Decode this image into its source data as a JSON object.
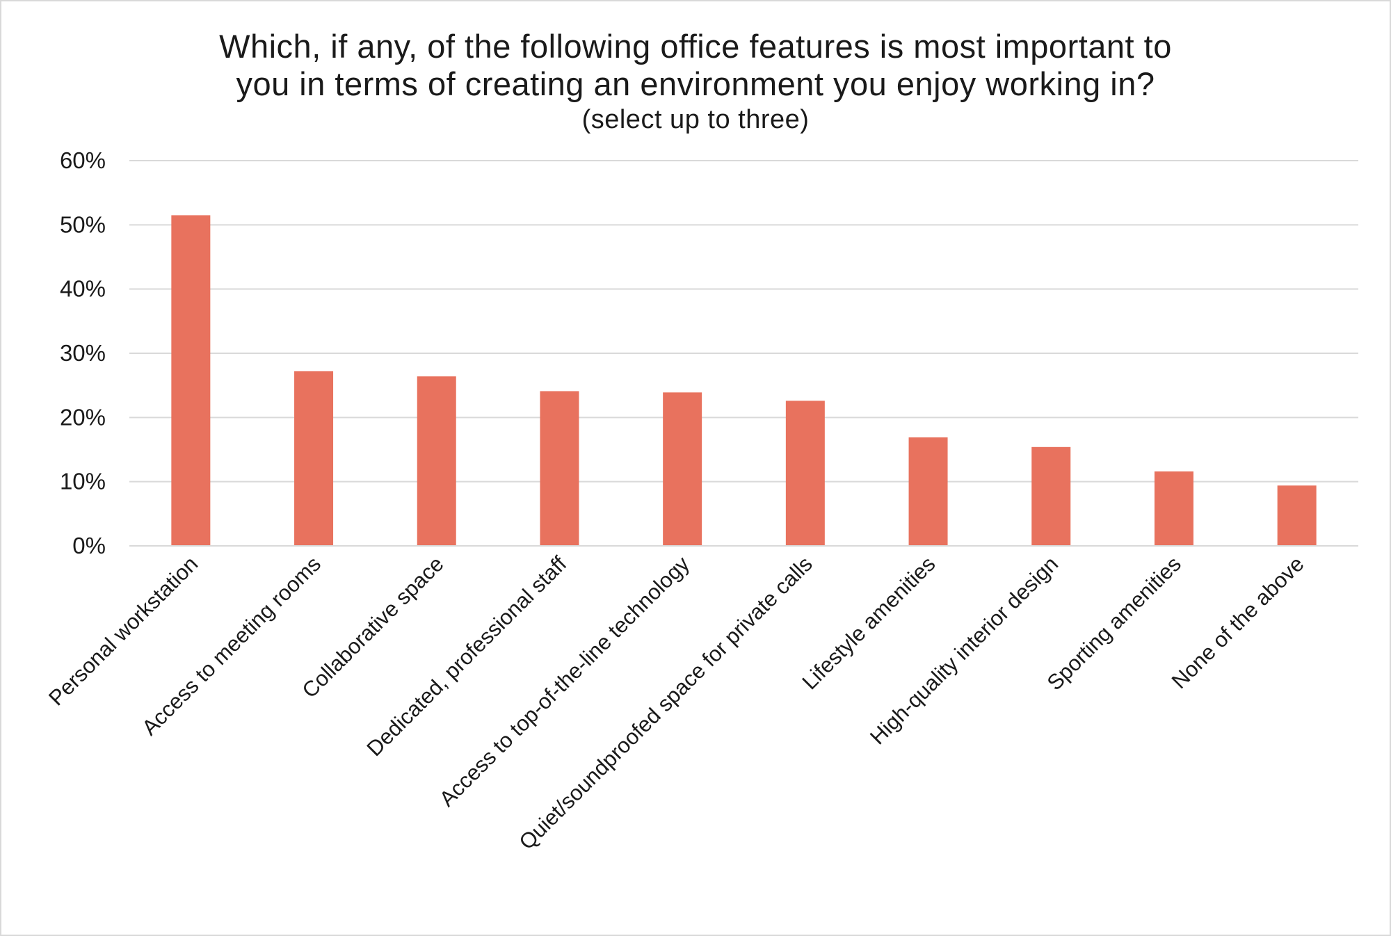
{
  "chart_data": {
    "type": "bar",
    "title": "Which, if any, of the following office features is most important to",
    "title_line2": "you in terms of creating an environment you enjoy working in?",
    "subtitle": "(select up to three)",
    "categories": [
      "Personal workstation",
      "Access to meeting rooms",
      "Collaborative space",
      "Dedicated, professional staff",
      "Access to top-of-the-line technology",
      "Quiet/soundproofed space for private calls",
      "Lifestyle amenities",
      "High-quality interior design",
      "Sporting amenities",
      "None of the above"
    ],
    "values": [
      51.5,
      27.2,
      26.4,
      24.1,
      23.9,
      22.6,
      16.9,
      15.4,
      11.6,
      9.4
    ],
    "yticks": [
      "0%",
      "10%",
      "20%",
      "30%",
      "40%",
      "50%",
      "60%"
    ],
    "ylim": [
      0,
      60
    ],
    "xlabel": "",
    "ylabel": "",
    "grid": true,
    "legend": "none",
    "colors": {
      "bar": "#e8725e",
      "grid": "#d9d9d9",
      "axis": "#d9d9d9",
      "text": "#1a1a1a"
    }
  }
}
